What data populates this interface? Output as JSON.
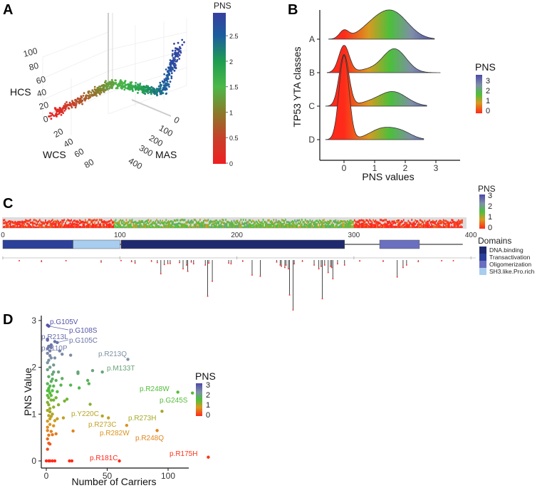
{
  "colors": {
    "scale_A": [
      [
        "0",
        "#ee1f22"
      ],
      [
        "0.5",
        "#c8402a"
      ],
      [
        "1",
        "#8a7a2a"
      ],
      [
        "1.5",
        "#4cb848"
      ],
      [
        "2",
        "#1f9e50"
      ],
      [
        "2.5",
        "#1b5e9e"
      ],
      [
        "2.9",
        "#3342a0"
      ]
    ],
    "scale_BCD": [
      [
        "0",
        "#ff2a1a"
      ],
      [
        "0.8",
        "#d89a20"
      ],
      [
        "1.5",
        "#4cbf3c"
      ],
      [
        "2.2",
        "#7f8fa8"
      ],
      [
        "3",
        "#4c4aa8"
      ]
    ],
    "domain_colors": {
      "DNA.binding": "#1f2a6e",
      "Transactivation": "#2c409a",
      "Oligomerization": "#6a6fc0",
      "SH3.like.Pro.rich": "#a8cdee"
    }
  },
  "chart_data": [
    {
      "panel": "A",
      "type": "scatter",
      "projection": "3d",
      "axes": {
        "x": {
          "label": "WCS",
          "ticks": [
            "20",
            "40",
            "60",
            "80"
          ]
        },
        "y": {
          "label": "MAS",
          "ticks": [
            "0",
            "100",
            "200",
            "300",
            "400"
          ]
        },
        "z": {
          "label": "HCS",
          "ticks": [
            "0",
            "20",
            "40",
            "60",
            "80",
            "100"
          ]
        }
      },
      "colorbar": {
        "title": "PNS",
        "ticks": [
          "0",
          "0.5",
          "1",
          "1.5",
          "2",
          "2.5"
        ],
        "range": [
          0,
          2.9
        ]
      },
      "trend": "points run from low HCS/WCS (PNS≈0, red) through mid MAS (PNS≈1.5, green) to high HCS (PNS≈2.9, blue)"
    },
    {
      "panel": "B",
      "type": "ridgeline",
      "xlabel": "PNS values",
      "ylabel": "TP53 YTA classes",
      "xticks": [
        "0",
        "1",
        "2",
        "3"
      ],
      "xlim": [
        -0.75,
        3.75
      ],
      "legend": {
        "title": "PNS",
        "ticks": [
          "3",
          "2",
          "1",
          "0"
        ],
        "placement": "right"
      },
      "series": [
        {
          "name": "A",
          "range": [
            -0.5,
            2.95
          ],
          "components": [
            [
              0,
              0.15,
              0.28
            ],
            [
              0.9,
              0.45,
              0.35
            ],
            [
              1.6,
              0.5,
              0.9
            ]
          ]
        },
        {
          "name": "B",
          "range": [
            -0.55,
            3.15
          ],
          "components": [
            [
              0,
              0.17,
              0.95
            ],
            [
              1.65,
              0.38,
              0.83
            ],
            [
              0.8,
              0.4,
              0.1
            ]
          ]
        },
        {
          "name": "C",
          "range": [
            -0.6,
            2.7
          ],
          "components": [
            [
              0,
              0.16,
              1.8
            ],
            [
              1.6,
              0.45,
              0.5
            ],
            [
              0.8,
              0.4,
              0.1
            ]
          ]
        },
        {
          "name": "D",
          "range": [
            -0.6,
            2.6
          ],
          "components": [
            [
              0,
              0.16,
              2.95
            ],
            [
              1.25,
              0.42,
              0.38
            ],
            [
              1.9,
              0.35,
              0.22
            ]
          ]
        }
      ]
    },
    {
      "panel": "C",
      "type": "lollipop",
      "xticks": [
        "0",
        "100",
        "200",
        "300",
        "400"
      ],
      "protein_length": 393,
      "heat_legend": {
        "title": "PNS",
        "ticks": [
          "3",
          "2",
          "1",
          "0"
        ]
      },
      "heatmap_regions": [
        [
          1,
          95,
          0.25
        ],
        [
          96,
          128,
          1.3
        ],
        [
          129,
          300,
          1.4
        ],
        [
          301,
          393,
          0.2
        ]
      ],
      "domains_title": "Domains",
      "domains": [
        {
          "name": "Transactivation",
          "start": 1,
          "end": 60
        },
        {
          "name": "SH3.like.Pro.rich",
          "start": 61,
          "end": 100
        },
        {
          "name": "DNA.binding",
          "start": 102,
          "end": 292
        },
        {
          "name": "Oligomerization",
          "start": 323,
          "end": 356
        }
      ],
      "legend_order": [
        "DNA.binding",
        "Transactivation",
        "Oligomerization",
        "SH3.like.Pro.rich"
      ],
      "mutations": [
        [
          14,
          3
        ],
        [
          33,
          6
        ],
        [
          54,
          3
        ],
        [
          84,
          8
        ],
        [
          101,
          2
        ],
        [
          110,
          6
        ],
        [
          113,
          12
        ],
        [
          127,
          5
        ],
        [
          132,
          10
        ],
        [
          135,
          55
        ],
        [
          138,
          18
        ],
        [
          141,
          14
        ],
        [
          143,
          14
        ],
        [
          151,
          10
        ],
        [
          154,
          35
        ],
        [
          157,
          20
        ],
        [
          158,
          45
        ],
        [
          161,
          8
        ],
        [
          163,
          15
        ],
        [
          173,
          20
        ],
        [
          175,
          145
        ],
        [
          176,
          12
        ],
        [
          179,
          85
        ],
        [
          193,
          12
        ],
        [
          195,
          15
        ],
        [
          205,
          5
        ],
        [
          213,
          60
        ],
        [
          220,
          65
        ],
        [
          234,
          8
        ],
        [
          237,
          20
        ],
        [
          238,
          25
        ],
        [
          241,
          30
        ],
        [
          242,
          20
        ],
        [
          244,
          35
        ],
        [
          245,
          140
        ],
        [
          248,
          200
        ],
        [
          249,
          15
        ],
        [
          256,
          5
        ],
        [
          266,
          20
        ],
        [
          270,
          35
        ],
        [
          272,
          25
        ],
        [
          273,
          155
        ],
        [
          275,
          20
        ],
        [
          278,
          50
        ],
        [
          280,
          25
        ],
        [
          281,
          30
        ],
        [
          282,
          75
        ],
        [
          286,
          15
        ],
        [
          292,
          20
        ],
        [
          305,
          4
        ],
        [
          325,
          5
        ],
        [
          337,
          68
        ],
        [
          342,
          30
        ],
        [
          345,
          20
        ],
        [
          355,
          6
        ],
        [
          375,
          3
        ],
        [
          385,
          3
        ]
      ]
    },
    {
      "panel": "D",
      "type": "scatter",
      "xlabel": "Number of Carriers",
      "ylabel": "PNS Value",
      "xticks": [
        "0",
        "50",
        "100"
      ],
      "yticks": [
        "0",
        "1",
        "2",
        "3"
      ],
      "xlim": [
        -4,
        136
      ],
      "ylim": [
        -0.15,
        3.05
      ],
      "legend": {
        "title": "PNS",
        "ticks": [
          "3",
          "2",
          "1",
          "0"
        ],
        "placement": "right"
      },
      "labeled_points": [
        {
          "label": "p.G105V",
          "x": 1,
          "y": 2.9
        },
        {
          "label": "p.G108S",
          "x": 2,
          "y": 2.88
        },
        {
          "label": "p.R213L",
          "x": 1,
          "y": 2.58
        },
        {
          "label": "p.G105C",
          "x": 9,
          "y": 2.53
        },
        {
          "label": "p.L110P",
          "x": 2,
          "y": 2.44
        },
        {
          "label": "p.R213Q",
          "x": 67,
          "y": 2.17
        },
        {
          "label": "p.M133T",
          "x": 46,
          "y": 1.9
        },
        {
          "label": "p.R248W",
          "x": 108,
          "y": 1.47
        },
        {
          "label": "p.G245S",
          "x": 120,
          "y": 1.45
        },
        {
          "label": "p.Y220C",
          "x": 46,
          "y": 0.96
        },
        {
          "label": "p.R273H",
          "x": 95,
          "y": 1.06
        },
        {
          "label": "p.R273C",
          "x": 51,
          "y": 0.92
        },
        {
          "label": "p.R282W",
          "x": 66,
          "y": 0.76
        },
        {
          "label": "p.R248Q",
          "x": 91,
          "y": 0.65
        },
        {
          "label": "p.R181C",
          "x": 60,
          "y": 0.0
        },
        {
          "label": "p.R175H",
          "x": 133,
          "y": 0.08
        }
      ],
      "points": [
        [
          0,
          0
        ],
        [
          2,
          0
        ],
        [
          3,
          0
        ],
        [
          5,
          0
        ],
        [
          7,
          0
        ],
        [
          19,
          0
        ],
        [
          21,
          0
        ],
        [
          1,
          0.25
        ],
        [
          2,
          0.38
        ],
        [
          3,
          0.36
        ],
        [
          1,
          0.47
        ],
        [
          2,
          0.55
        ],
        [
          5,
          0.56
        ],
        [
          8,
          0.58
        ],
        [
          1,
          0.65
        ],
        [
          4,
          0.63
        ],
        [
          22,
          0.64
        ],
        [
          1,
          0.72
        ],
        [
          3,
          0.78
        ],
        [
          6,
          0.75
        ],
        [
          1,
          0.85
        ],
        [
          3,
          0.9
        ],
        [
          7,
          0.86
        ],
        [
          9,
          0.9
        ],
        [
          2,
          0.97
        ],
        [
          5,
          1.0
        ],
        [
          14,
          0.92
        ],
        [
          1,
          1.08
        ],
        [
          3,
          1.12
        ],
        [
          6,
          1.15
        ],
        [
          10,
          1.2
        ],
        [
          1,
          1.25
        ],
        [
          4,
          1.3
        ],
        [
          8,
          1.35
        ],
        [
          15,
          1.28
        ],
        [
          17,
          1.32
        ],
        [
          36,
          1.21
        ],
        [
          1,
          1.4
        ],
        [
          3,
          1.45
        ],
        [
          5,
          1.5
        ],
        [
          9,
          1.48
        ],
        [
          2,
          1.55
        ],
        [
          6,
          1.6
        ],
        [
          12,
          1.62
        ],
        [
          20,
          1.62
        ],
        [
          27,
          1.56
        ],
        [
          35,
          1.65
        ],
        [
          1,
          1.65
        ],
        [
          4,
          1.7
        ],
        [
          8,
          1.72
        ],
        [
          13,
          1.76
        ],
        [
          34,
          1.72
        ],
        [
          2,
          1.8
        ],
        [
          5,
          1.85
        ],
        [
          10,
          1.9
        ],
        [
          26,
          1.87
        ],
        [
          26,
          1.9
        ],
        [
          38,
          1.93
        ],
        [
          1,
          1.95
        ],
        [
          3,
          2.0
        ],
        [
          6,
          2.05
        ],
        [
          1,
          2.1
        ],
        [
          2,
          2.15
        ],
        [
          4,
          2.2
        ],
        [
          3,
          2.25
        ],
        [
          7,
          2.2
        ],
        [
          20,
          2.26
        ],
        [
          13,
          2.28
        ],
        [
          1,
          2.3
        ],
        [
          3,
          2.35
        ],
        [
          11,
          2.35
        ],
        [
          2,
          2.45
        ],
        [
          4,
          2.42
        ],
        [
          1,
          2.4
        ],
        [
          4,
          2.48
        ],
        [
          7,
          2.55
        ],
        [
          1,
          2.6
        ],
        [
          2,
          1.5
        ],
        [
          3,
          1.6
        ],
        [
          4,
          1.4
        ],
        [
          2,
          1.35
        ],
        [
          5,
          1.75
        ],
        [
          1,
          1.5
        ],
        [
          6,
          1.3
        ],
        [
          3,
          1.05
        ],
        [
          2,
          1.2
        ],
        [
          4,
          0.95
        ],
        [
          6,
          1.9
        ]
      ]
    }
  ],
  "panels": {
    "A": "A",
    "B": "B",
    "C": "C",
    "D": "D"
  }
}
